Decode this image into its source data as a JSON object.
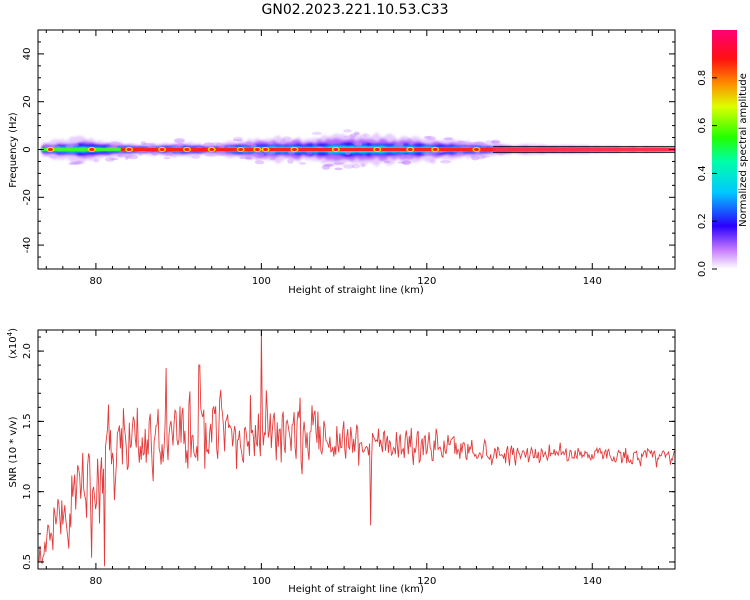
{
  "title": "GN02.2023.221.10.53.C33",
  "chart_data": [
    {
      "type": "heatmap",
      "xlabel": "Height of straight line (km)",
      "ylabel": "Frequency (Hz)",
      "xlim": [
        73,
        150
      ],
      "ylim": [
        -50,
        50
      ],
      "xticks": [
        80,
        100,
        120,
        140
      ],
      "yticks": [
        40,
        20,
        0,
        -20,
        -40
      ],
      "colorbar": {
        "label": "Normalized spectral amplitude",
        "range": [
          0,
          1
        ],
        "ticks": [
          "0.0",
          "0.2",
          "0.4",
          "0.6",
          "0.8"
        ]
      },
      "band_half_width_hz": [
        [
          74,
          3
        ],
        [
          78,
          5
        ],
        [
          82,
          3
        ],
        [
          86,
          2
        ],
        [
          90,
          3
        ],
        [
          94,
          2
        ],
        [
          98,
          4
        ],
        [
          102,
          5
        ],
        [
          106,
          5
        ],
        [
          110,
          6
        ],
        [
          114,
          6
        ],
        [
          118,
          5
        ],
        [
          122,
          4
        ],
        [
          126,
          3
        ],
        [
          130,
          2
        ],
        [
          140,
          1.5
        ],
        [
          150,
          1
        ]
      ],
      "ridge_spots_km": [
        74.5,
        79.5,
        84,
        88,
        91,
        94,
        97.5,
        99.5,
        100.5,
        104,
        109,
        114,
        118,
        121,
        126
      ]
    },
    {
      "type": "line",
      "xlabel": "Height of straight line (km)",
      "ylabel": "SNR (10 * v/v)",
      "multiplier": "(x10",
      "multiplier_exp": "4",
      "multiplier_close": ")",
      "xlim": [
        73,
        150
      ],
      "ylim": [
        0.45,
        2.15
      ],
      "xticks": [
        80,
        100,
        120,
        140
      ],
      "yticks": [
        "0.5",
        "1.0",
        "1.5",
        "2.0"
      ],
      "color": "#e23b3b",
      "envelope": [
        [
          73,
          0.55,
          0.2
        ],
        [
          76,
          0.85,
          0.35
        ],
        [
          79,
          1.05,
          0.5
        ],
        [
          81,
          1.15,
          0.55
        ],
        [
          83,
          1.3,
          0.45
        ],
        [
          86,
          1.35,
          0.45
        ],
        [
          90,
          1.38,
          0.45
        ],
        [
          95,
          1.4,
          0.4
        ],
        [
          100,
          1.42,
          0.45
        ],
        [
          105,
          1.4,
          0.38
        ],
        [
          110,
          1.38,
          0.32
        ],
        [
          115,
          1.36,
          0.28
        ],
        [
          120,
          1.33,
          0.22
        ],
        [
          125,
          1.3,
          0.16
        ],
        [
          130,
          1.28,
          0.12
        ],
        [
          135,
          1.27,
          0.1
        ],
        [
          140,
          1.27,
          0.1
        ],
        [
          145,
          1.25,
          0.1
        ],
        [
          150,
          1.24,
          0.12
        ]
      ],
      "spikes": [
        [
          100,
          2.15
        ],
        [
          113.2,
          0.76
        ],
        [
          81,
          0.47
        ],
        [
          79.5,
          0.53
        ],
        [
          81.5,
          1.62
        ],
        [
          88.5,
          1.88
        ],
        [
          92.5,
          1.9
        ]
      ]
    }
  ]
}
